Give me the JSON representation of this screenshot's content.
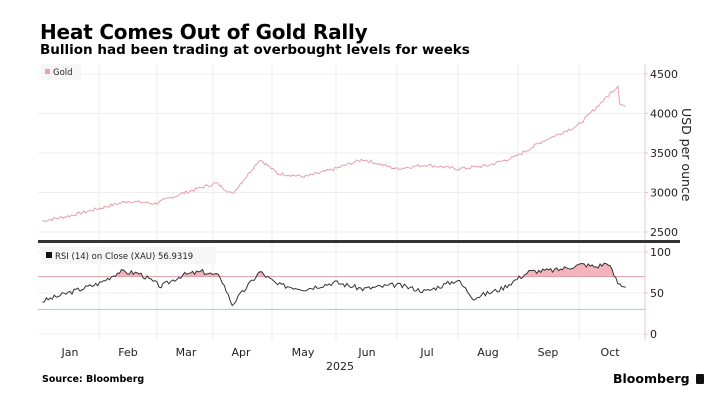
{
  "header": {
    "title": "Heat Comes Out of Gold Rally",
    "subtitle": "Bullion had been trading at overbought levels for weeks"
  },
  "footer": {
    "source": "Source: Bloomberg",
    "brand": "Bloomberg"
  },
  "colors": {
    "gold_line": "#e8a0a8",
    "rsi_line": "#333333",
    "overbought_fill": "#f5b3bc",
    "overbought_line": "#d9a0a8",
    "oversold_line": "#9bd9b0",
    "axis": "#f0c0c8",
    "separator": "#333333"
  },
  "chart_data": [
    {
      "type": "line",
      "title": "Gold",
      "legend": [
        "Gold"
      ],
      "legend_position": "top-left",
      "ylabel": "USD per ounce",
      "ylim": [
        2450,
        4600
      ],
      "yticks": [
        2500,
        3000,
        3500,
        4000,
        4500
      ],
      "grid": true,
      "x": [
        "Jan 2",
        "Jan 15",
        "Jan 31",
        "Feb 14",
        "Feb 28",
        "Mar 14",
        "Mar 31",
        "Apr 8",
        "Apr 22",
        "May 1",
        "May 15",
        "May 30",
        "Jun 13",
        "Jun 30",
        "Jul 15",
        "Jul 31",
        "Aug 15",
        "Aug 29",
        "Sep 12",
        "Sep 30",
        "Oct 8",
        "Oct 20",
        "Oct 21",
        "Oct 24"
      ],
      "values": [
        2640,
        2700,
        2800,
        2890,
        2860,
        2990,
        3120,
        2980,
        3420,
        3240,
        3200,
        3300,
        3420,
        3300,
        3350,
        3300,
        3340,
        3450,
        3650,
        3850,
        4050,
        4350,
        4120,
        4090
      ]
    },
    {
      "type": "line",
      "title": "RSI (14) on Close (XAU)",
      "legend": [
        "RSI (14)  on Close (XAU) 56.9319"
      ],
      "legend_position": "top-left",
      "last_value": "56.9319",
      "ylim": [
        0,
        100
      ],
      "yticks": [
        0,
        50,
        100
      ],
      "overbought": 70,
      "oversold": 30,
      "grid": true,
      "x": [
        "Jan 2",
        "Jan 15",
        "Jan 31",
        "Feb 10",
        "Feb 20",
        "Mar 3",
        "Mar 14",
        "Mar 24",
        "Apr 2",
        "Apr 8",
        "Apr 22",
        "May 1",
        "May 15",
        "May 30",
        "Jun 13",
        "Jun 30",
        "Jul 15",
        "Jul 31",
        "Aug 8",
        "Aug 22",
        "Sep 5",
        "Sep 19",
        "Oct 2",
        "Oct 9",
        "Oct 15",
        "Oct 20",
        "Oct 24"
      ],
      "values": [
        40,
        50,
        62,
        76,
        74,
        58,
        72,
        76,
        70,
        36,
        76,
        60,
        55,
        63,
        55,
        60,
        52,
        66,
        44,
        55,
        76,
        78,
        85,
        82,
        87,
        62,
        57
      ]
    }
  ],
  "x_axis": {
    "months": [
      "Jan",
      "Feb",
      "Mar",
      "Apr",
      "May",
      "Jun",
      "Jul",
      "Aug",
      "Sep",
      "Oct"
    ],
    "year": "2025"
  }
}
